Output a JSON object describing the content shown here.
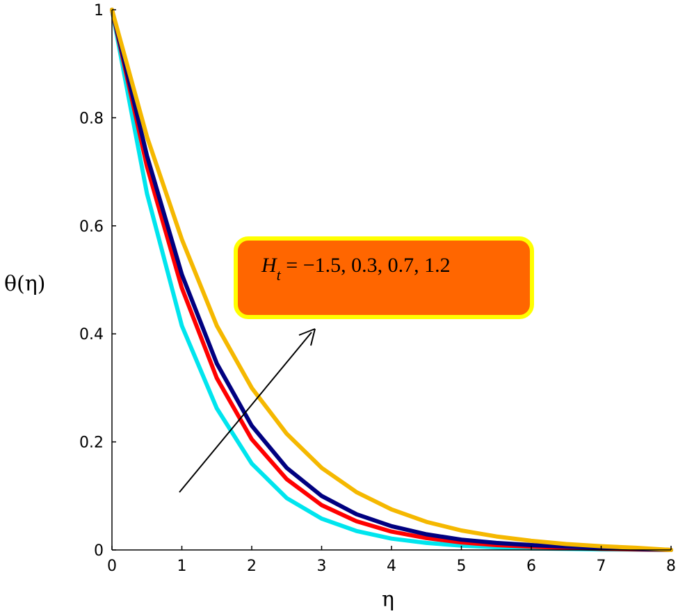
{
  "chart_data": {
    "type": "line",
    "xlabel": "η",
    "ylabel": "θ(η)",
    "xlim": [
      0,
      8
    ],
    "ylim": [
      0,
      1
    ],
    "x_ticks": [
      "0",
      "1",
      "2",
      "3",
      "4",
      "5",
      "6",
      "7",
      "8"
    ],
    "y_ticks": [
      "0",
      "0.2",
      "0.4",
      "0.6",
      "0.8",
      "1"
    ],
    "grid": false,
    "legend": "none",
    "x": [
      0,
      0.5,
      1,
      1.5,
      2,
      2.5,
      3,
      3.5,
      4,
      4.5,
      5,
      5.5,
      6,
      6.5,
      7,
      7.5,
      8
    ],
    "series": [
      {
        "color": "#00e5ee",
        "values": [
          1.0,
          0.66,
          0.415,
          0.262,
          0.16,
          0.096,
          0.058,
          0.035,
          0.021,
          0.013,
          0.008,
          0.005,
          0.003,
          0.002,
          0.001,
          0.0005,
          0.0
        ]
      },
      {
        "color": "#ff0000",
        "values": [
          1.0,
          0.71,
          0.485,
          0.318,
          0.205,
          0.131,
          0.083,
          0.053,
          0.034,
          0.022,
          0.014,
          0.009,
          0.006,
          0.004,
          0.002,
          0.001,
          0.0
        ]
      },
      {
        "color": "#000080",
        "values": [
          1.0,
          0.73,
          0.51,
          0.345,
          0.23,
          0.152,
          0.1,
          0.066,
          0.044,
          0.029,
          0.019,
          0.013,
          0.009,
          0.006,
          0.004,
          0.002,
          0.0
        ]
      },
      {
        "color": "#f5b800",
        "values": [
          1.0,
          0.765,
          0.575,
          0.415,
          0.3,
          0.215,
          0.152,
          0.107,
          0.075,
          0.052,
          0.036,
          0.025,
          0.017,
          0.011,
          0.007,
          0.004,
          0.0
        ]
      }
    ],
    "annotation": {
      "symbol": "H",
      "subscript": "t",
      "text": " = −1.5, 0.3, 0.7, 1.2",
      "box_color": "#ff6600",
      "box_border": "#ffff00",
      "arrow_color": "#000000"
    }
  }
}
